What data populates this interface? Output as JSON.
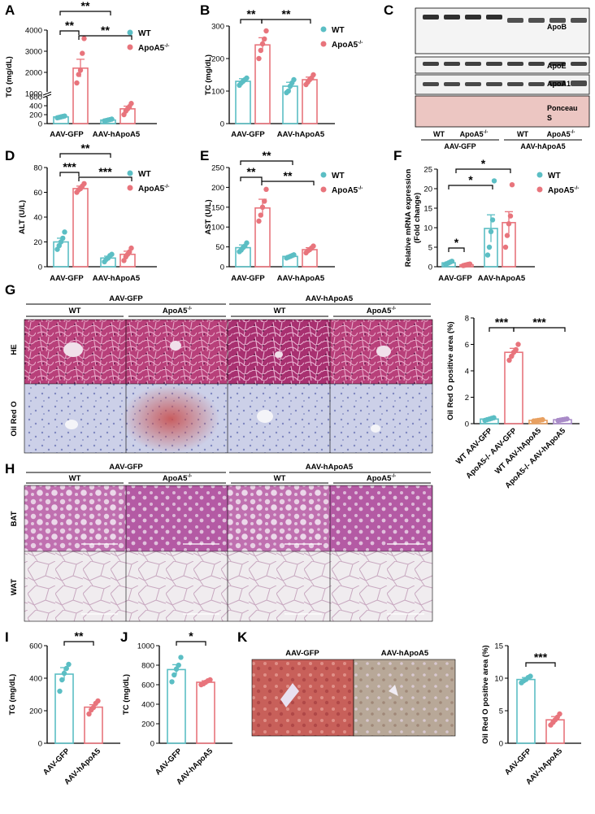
{
  "colors": {
    "wt": "#5bbec4",
    "ko": "#e8747c",
    "ko_light": "#f0a0a8",
    "purple": "#a98bc8",
    "orange": "#e8a060"
  },
  "legend": {
    "wt": "WT",
    "ko": "ApoA5",
    "ko_sup": "-/-"
  },
  "groups": {
    "gfp": "AAV-GFP",
    "hapoa5": "AAV-hApoA5"
  },
  "chart_data": [
    {
      "id": "A",
      "type": "bar",
      "ylabel": "TG (mg/dL)",
      "categories": [
        "AAV-GFP",
        "AAV-hApoA5"
      ],
      "series": [
        {
          "name": "WT",
          "values": [
            150,
            80
          ],
          "errors": [
            15,
            10
          ],
          "points": [
            [
              130,
              140,
              150,
              160,
              170
            ],
            [
              60,
              70,
              80,
              90,
              100
            ]
          ]
        },
        {
          "name": "ApoA5-/-",
          "values": [
            2200,
            330
          ],
          "errors": [
            420,
            60
          ],
          "points": [
            [
              1500,
              1900,
              2100,
              2900,
              3600
            ],
            [
              200,
              280,
              330,
              380,
              450
            ]
          ]
        }
      ],
      "yticks": [
        "0",
        "200",
        "400",
        "600",
        "1000",
        "2000",
        "3000",
        "4000"
      ],
      "sig": [
        {
          "label": "**",
          "from": "WT AAV-GFP",
          "to": "WT AAV-hApoA5"
        },
        {
          "label": "**",
          "from": "WT AAV-GFP",
          "to": "ApoA5-/- AAV-GFP"
        },
        {
          "label": "**",
          "from": "ApoA5-/- AAV-GFP",
          "to": "ApoA5-/- AAV-hApoA5"
        }
      ]
    },
    {
      "id": "B",
      "type": "bar",
      "ylabel": "TC (mg/dL)",
      "categories": [
        "AAV-GFP",
        "AAV-hApoA5"
      ],
      "ylim": [
        0,
        300
      ],
      "yticks": [
        "0",
        "100",
        "200",
        "300"
      ],
      "series": [
        {
          "name": "WT",
          "values": [
            130,
            115
          ],
          "errors": [
            8,
            12
          ],
          "points": [
            [
              118,
              125,
              130,
              135,
              140
            ],
            [
              95,
              100,
              115,
              125,
              135
            ]
          ]
        },
        {
          "name": "ApoA5-/-",
          "values": [
            242,
            135
          ],
          "errors": [
            22,
            8
          ],
          "points": [
            [
              200,
              225,
              245,
              260,
              285
            ],
            [
              120,
              128,
              135,
              140,
              150
            ]
          ]
        }
      ],
      "sig": [
        {
          "label": "**",
          "from": "WT AAV-GFP",
          "to": "ApoA5-/- AAV-GFP"
        },
        {
          "label": "**",
          "from": "ApoA5-/- AAV-GFP",
          "to": "ApoA5-/- AAV-hApoA5"
        }
      ]
    },
    {
      "id": "D",
      "type": "bar",
      "ylabel": "ALT (U/L)",
      "categories": [
        "AAV-GFP",
        "AAV-hApoA5"
      ],
      "ylim": [
        0,
        80
      ],
      "yticks": [
        "0",
        "20",
        "40",
        "60",
        "80"
      ],
      "series": [
        {
          "name": "WT",
          "values": [
            20,
            7
          ],
          "errors": [
            3,
            1.5
          ],
          "points": [
            [
              14,
              17,
              20,
              23,
              28
            ],
            [
              4,
              6,
              7,
              9,
              10
            ]
          ]
        },
        {
          "name": "ApoA5-/-",
          "values": [
            63,
            10
          ],
          "errors": [
            2,
            2.5
          ],
          "points": [
            [
              60,
              62,
              63,
              65,
              67
            ],
            [
              5,
              8,
              10,
              12,
              15
            ]
          ]
        }
      ],
      "sig": [
        {
          "label": "**",
          "from": "WT AAV-GFP",
          "to": "WT AAV-hApoA5"
        },
        {
          "label": "***",
          "from": "WT AAV-GFP",
          "to": "ApoA5-/- AAV-GFP"
        },
        {
          "label": "***",
          "from": "ApoA5-/- AAV-GFP",
          "to": "ApoA5-/- AAV-hApoA5"
        }
      ]
    },
    {
      "id": "E",
      "type": "bar",
      "ylabel": "AST (U/L)",
      "categories": [
        "AAV-GFP",
        "AAV-hApoA5"
      ],
      "ylim": [
        0,
        250
      ],
      "yticks": [
        "0",
        "50",
        "100",
        "150",
        "200",
        "250"
      ],
      "series": [
        {
          "name": "WT",
          "values": [
            48,
            26
          ],
          "errors": [
            7,
            2
          ],
          "points": [
            [
              38,
              42,
              48,
              52,
              60
            ],
            [
              22,
              24,
              26,
              28,
              30
            ]
          ]
        },
        {
          "name": "ApoA5-/-",
          "values": [
            148,
            43
          ],
          "errors": [
            22,
            5
          ],
          "points": [
            [
              115,
              130,
              150,
              165,
              195
            ],
            [
              35,
              40,
              43,
              47,
              52
            ]
          ]
        }
      ],
      "sig": [
        {
          "label": "**",
          "from": "WT AAV-GFP",
          "to": "WT AAV-hApoA5"
        },
        {
          "label": "**",
          "from": "WT AAV-GFP",
          "to": "ApoA5-/- AAV-GFP"
        },
        {
          "label": "**",
          "from": "ApoA5-/- AAV-GFP",
          "to": "ApoA5-/- AAV-hApoA5"
        }
      ]
    },
    {
      "id": "F",
      "type": "bar",
      "ylabel": "Relative mRNA expression",
      "ylabel2": "(Fold change)",
      "categories": [
        "AAV-GFP",
        "AAV-hApoA5"
      ],
      "ylim": [
        0,
        25
      ],
      "yticks": [
        "0",
        "5",
        "10",
        "15",
        "20",
        "25"
      ],
      "series": [
        {
          "name": "WT",
          "values": [
            1.0,
            9.8
          ],
          "errors": [
            0.2,
            3.5
          ],
          "points": [
            [
              0.6,
              0.8,
              1.0,
              1.2,
              1.4
            ],
            [
              3,
              5,
              9,
              12,
              22
            ]
          ]
        },
        {
          "name": "ApoA5-/-",
          "values": [
            0.5,
            11.3
          ],
          "errors": [
            0.1,
            2.8
          ],
          "points": [
            [
              0.3,
              0.4,
              0.5,
              0.6,
              0.7
            ],
            [
              5,
              8,
              11,
              13,
              21
            ]
          ]
        }
      ],
      "sig": [
        {
          "label": "*",
          "from": "WT AAV-GFP",
          "to": "ApoA5-/- AAV-GFP"
        },
        {
          "label": "*",
          "from": "WT AAV-GFP",
          "to": "WT AAV-hApoA5"
        },
        {
          "label": "*",
          "from": "WT AAV-GFP",
          "to": "ApoA5-/- AAV-hApoA5"
        }
      ]
    },
    {
      "id": "G",
      "type": "bar",
      "ylabel": "Oil Red O positive area (%)",
      "ylim": [
        0,
        8
      ],
      "yticks": [
        "0",
        "2",
        "4",
        "6",
        "8"
      ],
      "categories": [
        "WT AAV-GFP",
        "ApoA5-/- AAV-GFP",
        "WT AAV-hApoA5",
        "ApoA5-/- AAV-hApoA5"
      ],
      "values": [
        0.35,
        5.4,
        0.25,
        0.3
      ],
      "errors": [
        0.05,
        0.3,
        0.03,
        0.04
      ],
      "points": [
        [
          0.25,
          0.3,
          0.35,
          0.4,
          0.45
        ],
        [
          4.8,
          5.1,
          5.4,
          5.6,
          6.0
        ],
        [
          0.2,
          0.22,
          0.25,
          0.27,
          0.3
        ],
        [
          0.24,
          0.27,
          0.3,
          0.33,
          0.36
        ]
      ],
      "sig": [
        {
          "label": "***",
          "from": "WT AAV-GFP",
          "to": "ApoA5-/- AAV-GFP"
        },
        {
          "label": "***",
          "from": "ApoA5-/- AAV-GFP",
          "to": "ApoA5-/- AAV-hApoA5"
        }
      ]
    },
    {
      "id": "I",
      "type": "bar",
      "ylabel": "TG (mg/dL)",
      "ylim": [
        0,
        600
      ],
      "yticks": [
        "0",
        "200",
        "400",
        "600"
      ],
      "categories": [
        "AAV-GFP",
        "AAV-hApoA5"
      ],
      "values": [
        425,
        222
      ],
      "errors": [
        40,
        15
      ],
      "points": [
        [
          320,
          390,
          430,
          460,
          485
        ],
        [
          180,
          205,
          220,
          245,
          260
        ]
      ],
      "sig": [
        {
          "label": "**",
          "from": "AAV-GFP",
          "to": "AAV-hApoA5"
        }
      ]
    },
    {
      "id": "J",
      "type": "bar",
      "ylabel": "TC (mg/dL)",
      "ylim": [
        0,
        1000
      ],
      "yticks": [
        "0",
        "200",
        "400",
        "600",
        "800",
        "1000"
      ],
      "categories": [
        "AAV-GFP",
        "AAV-hApoA5"
      ],
      "values": [
        755,
        625
      ],
      "errors": [
        50,
        15
      ],
      "points": [
        [
          630,
          700,
          760,
          800,
          880
        ],
        [
          600,
          610,
          625,
          640,
          650
        ]
      ],
      "sig": [
        {
          "label": "*",
          "from": "AAV-GFP",
          "to": "AAV-hApoA5"
        }
      ]
    },
    {
      "id": "K",
      "type": "bar",
      "ylabel": "Oil Red O positive area (%)",
      "ylim": [
        0,
        15
      ],
      "yticks": [
        "0",
        "5",
        "10",
        "15"
      ],
      "categories": [
        "AAV-GFP",
        "AAV-hApoA5"
      ],
      "values": [
        9.8,
        3.6
      ],
      "errors": [
        0.3,
        0.5
      ],
      "points": [
        [
          9.3,
          9.6,
          9.8,
          10.1,
          10.3
        ],
        [
          2.8,
          3.2,
          3.6,
          4.0,
          4.5
        ]
      ],
      "sig": [
        {
          "label": "***",
          "from": "AAV-GFP",
          "to": "AAV-hApoA5"
        }
      ]
    }
  ],
  "panel_c": {
    "bands": [
      "ApoB",
      "ApoE",
      "ApoA1",
      "Ponceau",
      "S"
    ],
    "lanes": [
      "WT",
      "ApoA5",
      "WT",
      "ApoA5"
    ],
    "lane_sup": "-/-",
    "groups": [
      "AAV-GFP",
      "AAV-hApoA5"
    ]
  },
  "panel_g": {
    "cols": [
      "WT",
      "ApoA5",
      "WT",
      "ApoA5"
    ],
    "col_sup": "-/-",
    "groups": [
      "AAV-GFP",
      "AAV-hApoA5"
    ],
    "rows": [
      "HE",
      "Oil Red O"
    ]
  },
  "panel_h": {
    "cols": [
      "WT",
      "ApoA5",
      "WT",
      "ApoA5"
    ],
    "col_sup": "-/-",
    "groups": [
      "AAV-GFP",
      "AAV-hApoA5"
    ],
    "rows": [
      "BAT",
      "WAT"
    ]
  },
  "panel_k": {
    "cols": [
      "AAV-GFP",
      "AAV-hApoA5"
    ]
  }
}
